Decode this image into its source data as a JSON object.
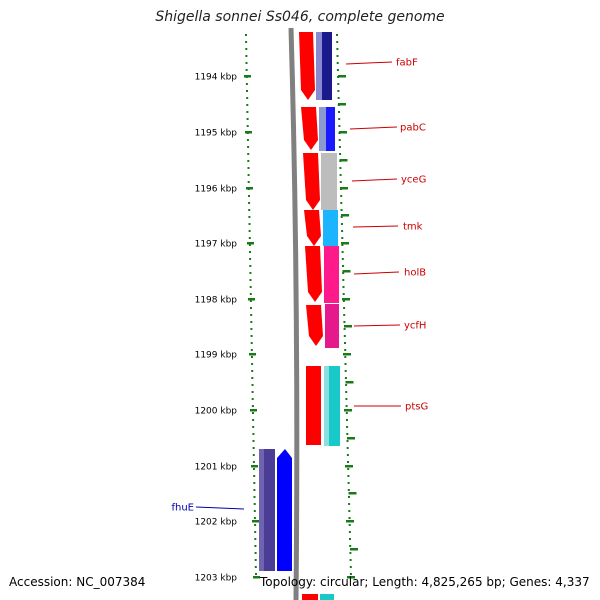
{
  "title": "Shigella sonnei Ss046, complete genome",
  "footer": {
    "accession": "Accession: NC_007384",
    "summary": "Topology: circular; Length: 4,825,265 bp; Genes: 4,337"
  },
  "ruler": {
    "unit": "kbp",
    "labels": [
      "1194 kbp",
      "1195 kbp",
      "1196 kbp",
      "1197 kbp",
      "1198 kbp",
      "1199 kbp",
      "1200 kbp",
      "1201 kbp",
      "1202 kbp",
      "1203 kbp"
    ]
  },
  "genes": [
    {
      "name": "fabF",
      "strand": "forward",
      "color": "#1a1a8c",
      "label_color": "#cc0000"
    },
    {
      "name": "pabC",
      "strand": "forward",
      "color": "#1a1aff",
      "label_color": "#cc0000"
    },
    {
      "name": "yceG",
      "strand": "forward",
      "color": "#bdbdbd",
      "label_color": "#cc0000"
    },
    {
      "name": "tmk",
      "strand": "forward",
      "color": "#1ab4ff",
      "label_color": "#cc0000"
    },
    {
      "name": "holB",
      "strand": "forward",
      "color": "#ff1a8c",
      "label_color": "#cc0000"
    },
    {
      "name": "ycfH",
      "strand": "forward",
      "color": "#e6198c",
      "label_color": "#cc0000"
    },
    {
      "name": "ptsG",
      "strand": "forward",
      "color": "#19c8c8",
      "label_color": "#cc0000"
    },
    {
      "name": "fhuE",
      "strand": "reverse",
      "color": "#4b3c96",
      "label_color": "#0000aa"
    }
  ],
  "colors": {
    "tick": "#1a7a1a",
    "backbone": "#808080",
    "orf_forward": "#ff0000",
    "orf_reverse": "#0000ff",
    "gene_label_line_forward": "#cc0000",
    "gene_label_line_reverse": "#0000aa"
  }
}
